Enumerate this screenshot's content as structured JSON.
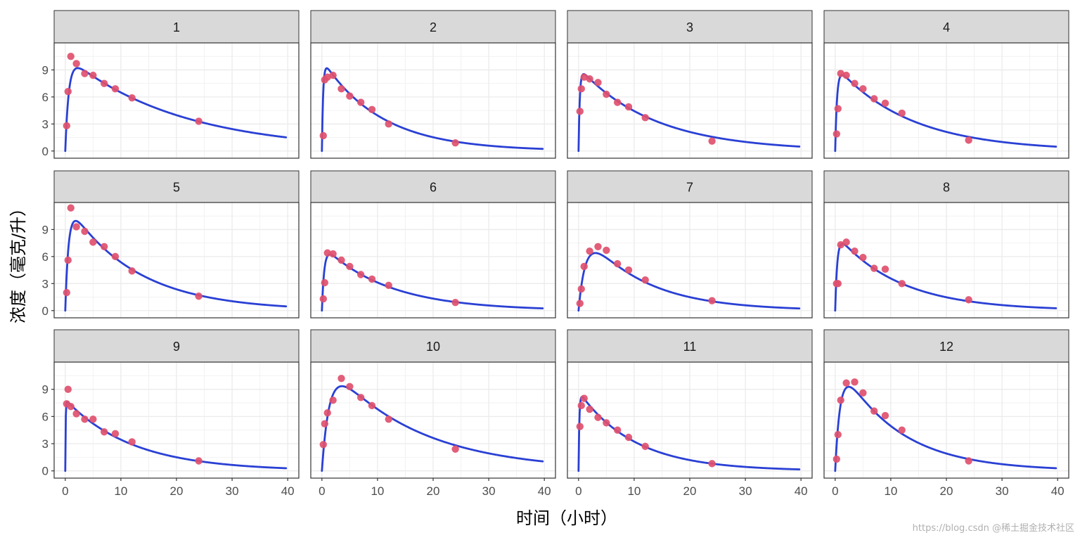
{
  "chart_data": {
    "type": "scatter",
    "subtype": "faceted scatter with fitted line",
    "xlabel": "时间（小时）",
    "ylabel": "浓度（毫克/升）",
    "xlim": [
      -2,
      42
    ],
    "ylim": [
      -0.8,
      12
    ],
    "x_ticks": [
      0,
      10,
      20,
      30,
      40
    ],
    "y_ticks": [
      0,
      3,
      6,
      9
    ],
    "grid": true,
    "facet_layout": "3 rows x 4 columns",
    "colors": {
      "points": "#E0506E",
      "fit_line": "#2A40D4",
      "strip_bg": "#D9D9D9",
      "grid": "#EBEBEB",
      "border": "#333333"
    },
    "times": [
      0.25,
      0.5,
      1,
      2,
      3.5,
      5,
      7,
      9,
      12,
      24
    ],
    "panels": [
      {
        "label": "1",
        "y": [
          2.8,
          6.6,
          10.5,
          9.7,
          8.6,
          8.4,
          7.5,
          6.9,
          5.9,
          3.3
        ],
        "fit": {
          "ka": 1.6,
          "ke": 0.049,
          "A": 10.6
        }
      },
      {
        "label": "2",
        "y": [
          1.7,
          7.9,
          8.2,
          8.4,
          6.9,
          6.1,
          5.4,
          4.6,
          3.0,
          0.9
        ],
        "fit": {
          "ka": 4.5,
          "ke": 0.095,
          "A": 10.2
        }
      },
      {
        "label": "3",
        "y": [
          4.4,
          6.9,
          8.2,
          8.0,
          7.6,
          6.3,
          5.4,
          4.9,
          3.7,
          1.1
        ],
        "fit": {
          "ka": 4.5,
          "ke": 0.074,
          "A": 9.3
        }
      },
      {
        "label": "4",
        "y": [
          1.9,
          4.7,
          8.6,
          8.4,
          7.5,
          6.9,
          5.8,
          5.3,
          4.2,
          1.2
        ],
        "fit": {
          "ka": 3.0,
          "ke": 0.075,
          "A": 9.5
        }
      },
      {
        "label": "5",
        "y": [
          2.0,
          5.6,
          11.4,
          9.3,
          8.8,
          7.6,
          7.1,
          6.0,
          4.4,
          1.6
        ],
        "fit": {
          "ka": 1.7,
          "ke": 0.082,
          "A": 12.2
        }
      },
      {
        "label": "6",
        "y": [
          1.3,
          3.1,
          6.4,
          6.3,
          5.6,
          4.9,
          4.0,
          3.5,
          2.8,
          0.9
        ],
        "fit": {
          "ka": 2.4,
          "ke": 0.085,
          "A": 7.3
        }
      },
      {
        "label": "7",
        "y": [
          0.8,
          2.4,
          4.9,
          6.6,
          7.1,
          6.7,
          5.2,
          4.5,
          3.4,
          1.1
        ],
        "fit": {
          "ka": 0.8,
          "ke": 0.093,
          "A": 9.6
        }
      },
      {
        "label": "8",
        "y": [
          3.0,
          3.0,
          7.3,
          7.6,
          6.6,
          5.9,
          4.7,
          4.6,
          3.0,
          1.2
        ],
        "fit": {
          "ka": 2.7,
          "ke": 0.088,
          "A": 8.6
        }
      },
      {
        "label": "9",
        "y": [
          7.4,
          9.0,
          7.1,
          6.3,
          5.7,
          5.7,
          4.3,
          4.1,
          3.2,
          1.1
        ],
        "fit": {
          "ka": 15.0,
          "ke": 0.083,
          "A": 7.9
        }
      },
      {
        "label": "10",
        "y": [
          2.9,
          5.2,
          6.4,
          7.8,
          10.2,
          9.3,
          8.1,
          7.2,
          5.7,
          2.4
        ],
        "fit": {
          "ka": 0.75,
          "ke": 0.063,
          "A": 12.8
        }
      },
      {
        "label": "11",
        "y": [
          4.9,
          7.2,
          8.0,
          6.8,
          5.9,
          5.3,
          4.5,
          3.7,
          2.7,
          0.8
        ],
        "fit": {
          "ka": 7.0,
          "ke": 0.1,
          "A": 8.8
        }
      },
      {
        "label": "12",
        "y": [
          1.3,
          4.0,
          7.8,
          9.7,
          9.8,
          8.6,
          6.6,
          6.1,
          4.5,
          1.1
        ],
        "fit": {
          "ka": 1.1,
          "ke": 0.095,
          "A": 12.8
        }
      }
    ]
  },
  "watermark": "https://blog.csdn @稀土掘金技术社区"
}
